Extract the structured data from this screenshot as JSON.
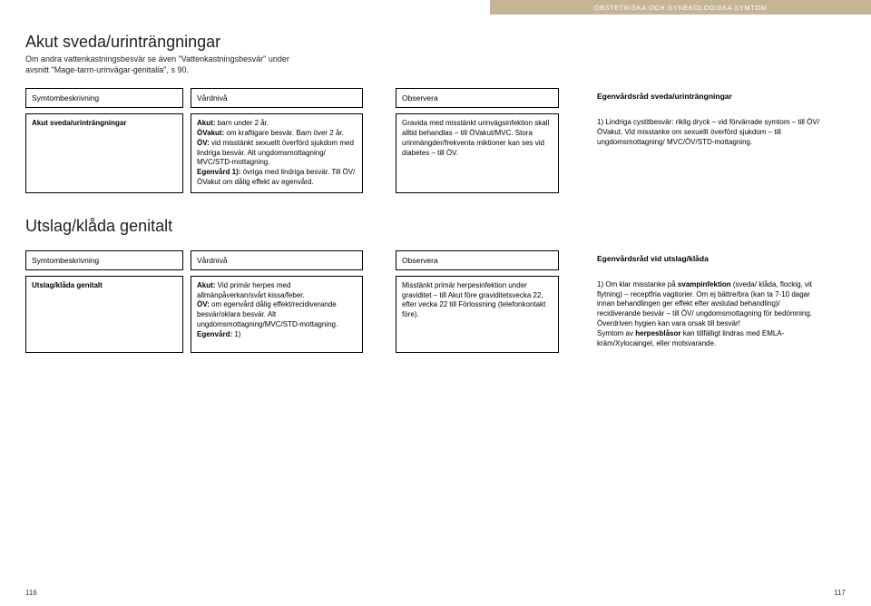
{
  "header_band": "OBSTETRISKA OCH GYNEKOLOGISKA SYMTOM",
  "sec1": {
    "title": "Akut sveda/urinträngningar",
    "sub": "Om andra vattenkastningsbesvär se även \"Vattenkastningsbesvär\" under avsnitt \"Mage-tarm-urinvägar-genitalia\", s 90.",
    "head": {
      "c1": "Symtombeskrivning",
      "c2": "Vårdnivå",
      "c4": "Observera",
      "c6": "Egenvårdsråd sveda/urinträngningar"
    },
    "row": {
      "c1_b": "Akut sveda/urinträngningar",
      "c2_html": "<b>Akut:</b> barn under 2 år.<br><b>ÖVakut:</b> om kraftigare besvär. Barn över 2 år.<br><b>ÖV:</b> vid misstänkt sexuellt överförd sjukdom med lindriga besvär. Alt ungdomsmottagning/ MVC/STD-mottagning.<br><b>Egenvård 1):</b> övriga med lindriga besvär. Till ÖV/ÖVakut om dålig effekt av egenvård.",
      "c4": "Gravida med misstänkt urinvägsinfektion skall alltid behandlas – till ÖVakut/MVC. Stora urinmängder/frekventa miktioner kan ses vid diabetes – till ÖV.",
      "c6": "1) Lindriga cystitbesvär: riklig dryck – vid förvärrade symtom – till ÖV/ÖVakut. Vid misstanke om sexuellt överförd sjukdom – till ungdomsmottagning/ MVC/ÖV/STD-mottagning."
    }
  },
  "sec2": {
    "title": "Utslag/klåda genitalt",
    "head": {
      "c1": "Symtombeskrivning",
      "c2": "Vårdnivå",
      "c4": "Observera",
      "c6": "Egenvårdsråd vid utslag/klåda"
    },
    "row": {
      "c1_b": "Utslag/klåda genitalt",
      "c2_html": "<b>Akut:</b> Vid primär herpes med allmänpåverkan/svårt kissa/feber.<br><b>ÖV:</b> om egenvård dålig effekt/recidiverande besvär/oklara besvär. Alt ungdomsmottagning/MVC/STD-mottagning.<br><b>Egenvård:</b> 1)",
      "c4": "Misstänkt primär herpesinfektion under graviditet – till Akut före graviditetsvecka 22, efter vecka 22 till Förlossning (telefonkontakt före).",
      "c6_html": "1) Om klar misstanke på <b>svampinfektion</b> (sveda/ klåda, flockig, vit flytning) – receptfria vagitorier. Om ej bättre/bra (kan ta 7-10 dagar innan behandlingen ger effekt efter avslutad behandling)/ recidiverande besvär – till ÖV/ ungdomsmottagning för bedömning.<br>Överdriven hygien kan vara orsak till besvär!<br>Symtom av <b>herpesblåsor</b> kan tillfälligt lindras med EMLA-kräm/Xylocaingel, eller motsvarande."
    }
  },
  "page_left": "116",
  "page_right": "117"
}
